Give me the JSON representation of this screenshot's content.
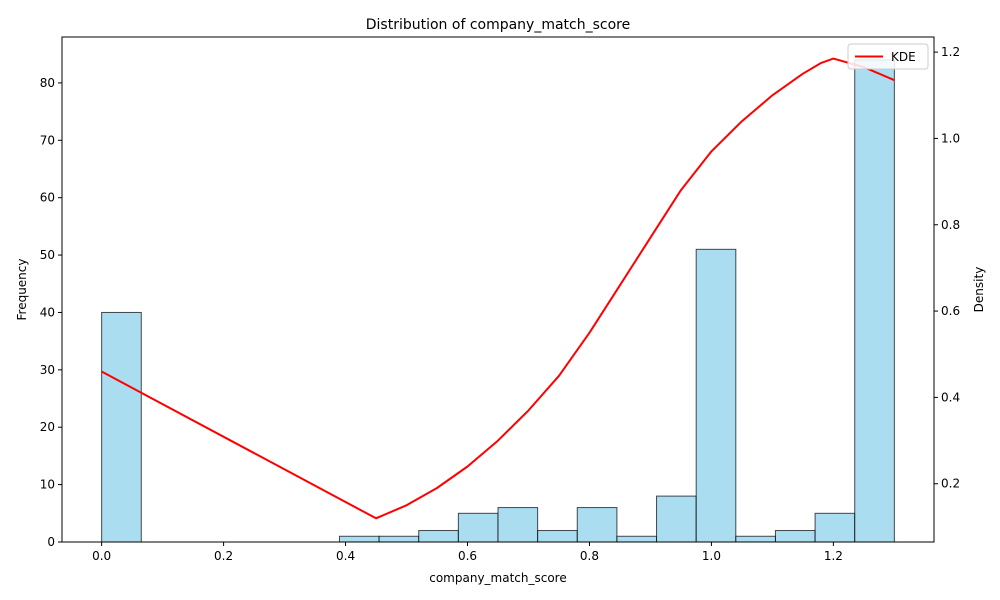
{
  "chart_data": {
    "type": "bar",
    "title": "Distribution of company_match_score",
    "xlabel": "company_match_score",
    "ylabel": "Frequency",
    "y2label": "Density",
    "xlim": [
      -0.065,
      1.365
    ],
    "ylim": [
      0,
      88
    ],
    "y2lim": [
      0.065,
      1.235
    ],
    "x_ticks": [
      0.0,
      0.2,
      0.4,
      0.6,
      0.8,
      1.0,
      1.2
    ],
    "x_tick_labels": [
      "0.0",
      "0.2",
      "0.4",
      "0.6",
      "0.8",
      "1.0",
      "1.2"
    ],
    "y_ticks": [
      0,
      10,
      20,
      30,
      40,
      50,
      60,
      70,
      80
    ],
    "y_tick_labels": [
      "0",
      "10",
      "20",
      "30",
      "40",
      "50",
      "60",
      "70",
      "80"
    ],
    "y2_ticks": [
      0.2,
      0.4,
      0.6,
      0.8,
      1.0,
      1.2
    ],
    "y2_tick_labels": [
      "0.2",
      "0.4",
      "0.6",
      "0.8",
      "1.0",
      "1.2"
    ],
    "histogram": {
      "bin_edges": [
        0.0,
        0.065,
        0.13,
        0.195,
        0.26,
        0.325,
        0.39,
        0.455,
        0.52,
        0.585,
        0.65,
        0.715,
        0.78,
        0.845,
        0.91,
        0.975,
        1.04,
        1.105,
        1.17,
        1.235,
        1.3
      ],
      "counts": [
        40,
        0,
        0,
        0,
        0,
        0,
        1,
        1,
        2,
        5,
        6,
        2,
        6,
        1,
        8,
        51,
        1,
        2,
        5,
        84
      ],
      "fill_color": "#87CEEB",
      "edge_color": "#000000"
    },
    "series": [
      {
        "name": "KDE",
        "color": "#ff0000",
        "x": [
          0.0,
          0.45,
          0.5,
          0.55,
          0.6,
          0.65,
          0.7,
          0.75,
          0.8,
          0.85,
          0.9,
          0.95,
          1.0,
          1.05,
          1.1,
          1.15,
          1.18,
          1.2,
          1.25,
          1.3
        ],
        "y": [
          0.46,
          0.12,
          0.15,
          0.19,
          0.24,
          0.3,
          0.37,
          0.45,
          0.55,
          0.66,
          0.77,
          0.88,
          0.97,
          1.04,
          1.1,
          1.15,
          1.175,
          1.185,
          1.165,
          1.135
        ]
      }
    ],
    "legend": {
      "position": "top-right",
      "entries": [
        "KDE"
      ]
    },
    "grid": false
  }
}
